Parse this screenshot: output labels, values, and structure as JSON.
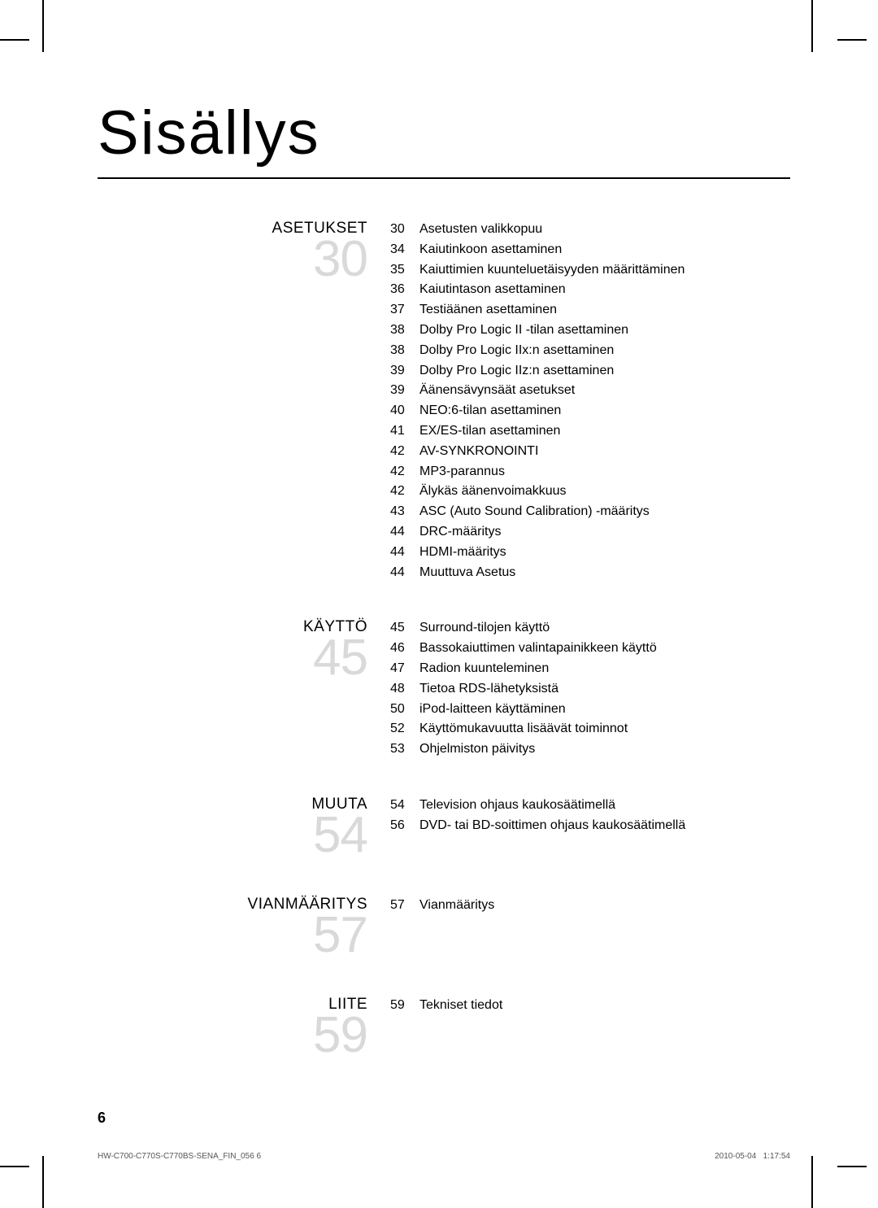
{
  "title": "Sisällys",
  "page_number": "6",
  "footer_left": "HW-C700-C770S-C770BS-SENA_FIN_056   6",
  "footer_date": "2010-05-04",
  "footer_time": "1:17:54",
  "colors": {
    "text": "#000000",
    "big_number": "#d9d9d9",
    "background": "#ffffff",
    "footer": "#555555"
  },
  "typography": {
    "title_fontsize": 76,
    "section_title_fontsize": 19,
    "section_number_fontsize": 62,
    "body_fontsize": 16,
    "page_number_fontsize": 18,
    "footer_fontsize": 10
  },
  "sections": [
    {
      "title": "ASETUKSET",
      "number": "30",
      "entries": [
        {
          "page": "30",
          "text": "Asetusten valikkopuu"
        },
        {
          "page": "34",
          "text": "Kaiutinkoon asettaminen"
        },
        {
          "page": "35",
          "text": "Kaiuttimien kuunteluetäisyyden määrittäminen"
        },
        {
          "page": "36",
          "text": "Kaiutintason asettaminen"
        },
        {
          "page": "37",
          "text": "Testiäänen asettaminen"
        },
        {
          "page": "38",
          "text": "Dolby Pro Logic II -tilan asettaminen"
        },
        {
          "page": "38",
          "text": "Dolby Pro Logic IIx:n asettaminen"
        },
        {
          "page": "39",
          "text": "Dolby Pro Logic IIz:n asettaminen"
        },
        {
          "page": "39",
          "text": "Äänensävynsäät asetukset"
        },
        {
          "page": "40",
          "text": "NEO:6-tilan asettaminen"
        },
        {
          "page": "41",
          "text": "EX/ES-tilan asettaminen"
        },
        {
          "page": "42",
          "text": "AV-SYNKRONOINTI"
        },
        {
          "page": "42",
          "text": "MP3-parannus"
        },
        {
          "page": "42",
          "text": "Älykäs äänenvoimakkuus"
        },
        {
          "page": "43",
          "text": "ASC (Auto Sound Calibration) -määritys"
        },
        {
          "page": "44",
          "text": "DRC-määritys"
        },
        {
          "page": "44",
          "text": "HDMI-määritys"
        },
        {
          "page": "44",
          "text": "Muuttuva Asetus"
        }
      ]
    },
    {
      "title": "KÄYTTÖ",
      "number": "45",
      "entries": [
        {
          "page": "45",
          "text": "Surround-tilojen käyttö"
        },
        {
          "page": "46",
          "text": "Bassokaiuttimen valintapainikkeen käyttö"
        },
        {
          "page": "47",
          "text": "Radion kuunteleminen"
        },
        {
          "page": "48",
          "text": "Tietoa RDS-lähetyksistä"
        },
        {
          "page": "50",
          "text": "iPod-laitteen käyttäminen"
        },
        {
          "page": "52",
          "text": "Käyttömukavuutta lisäävät toiminnot"
        },
        {
          "page": "53",
          "text": "Ohjelmiston päivitys"
        }
      ]
    },
    {
      "title": "MUUTA",
      "number": "54",
      "entries": [
        {
          "page": "54",
          "text": "Television ohjaus kaukosäätimellä"
        },
        {
          "page": "56",
          "text": "DVD- tai BD-soittimen ohjaus kaukosäätimellä"
        }
      ]
    },
    {
      "title": "VIANMÄÄRITYS",
      "number": "57",
      "entries": [
        {
          "page": "57",
          "text": "Vianmääritys"
        }
      ]
    },
    {
      "title": "LIITE",
      "number": "59",
      "entries": [
        {
          "page": "59",
          "text": "Tekniset tiedot"
        }
      ]
    }
  ]
}
